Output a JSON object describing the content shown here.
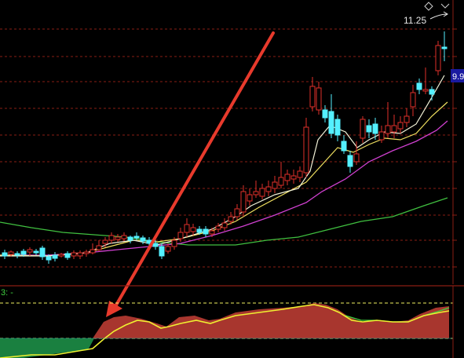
{
  "price_chart": {
    "high_label": "11.25",
    "current_price_tag": "9.9",
    "diamond_icon": "diamond-icon",
    "colors": {
      "background": "#000000",
      "up_candle": "#e0302a",
      "down_candle": "#54f0ff",
      "grid": "#8a1e14",
      "ma_fast": "#f2f2d8",
      "ma_mid": "#f0e060",
      "ma_slow": "#d040d0",
      "ma_long": "#40c040",
      "arrow": "#e83a2c",
      "price_tag_bg": "#1a1aa0"
    }
  },
  "indicator_panel": {
    "label": "3: -",
    "colors": {
      "positive_area": "#a8362e",
      "negative_area": "#1a8040",
      "line_main": "#f0f030",
      "line_second": "#40d040",
      "dashed_level": "#f0f060",
      "zero_line": "#20b0b0"
    }
  }
}
